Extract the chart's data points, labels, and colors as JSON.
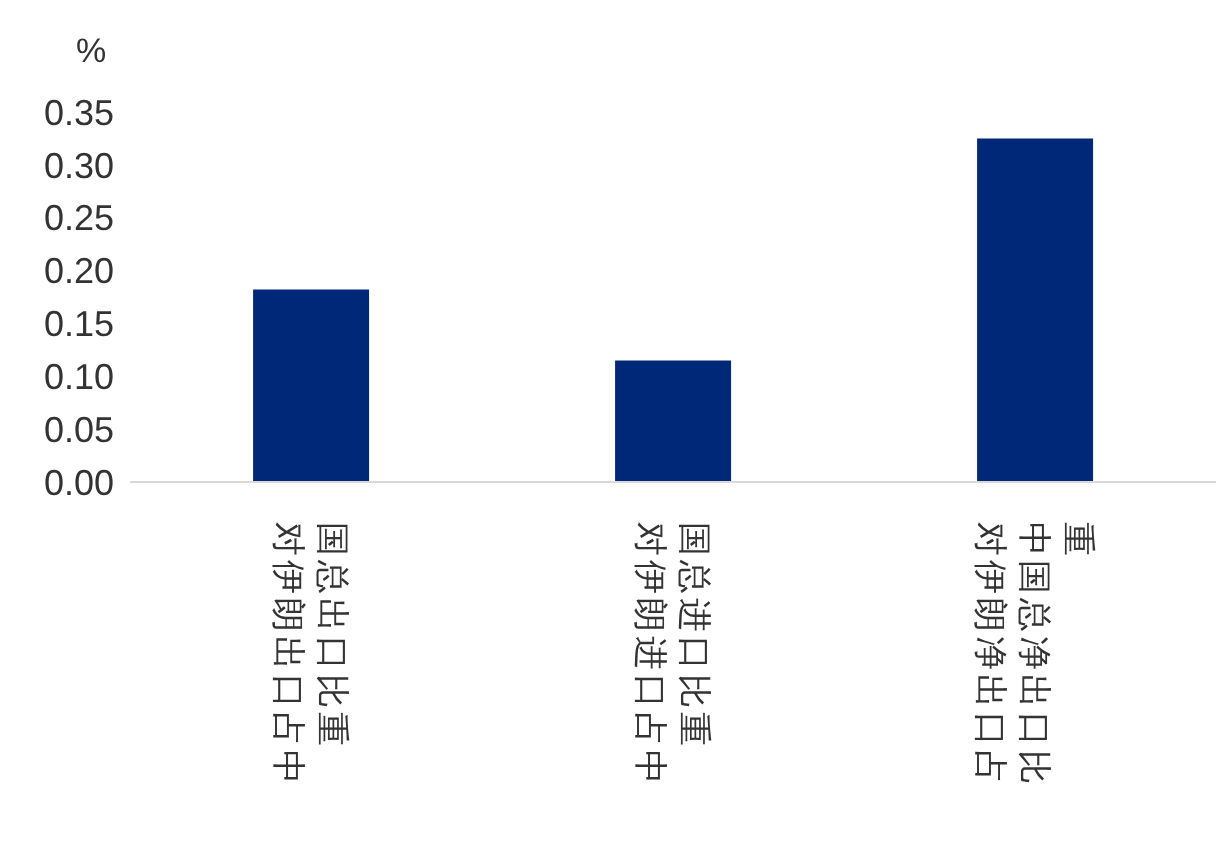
{
  "chart_data": {
    "type": "bar",
    "ylabel": "%",
    "categories": [
      "对伊朗出口占中国总出口比重",
      "对伊朗进口占中国总进口比重",
      "对伊朗净出口占中国总净出口比重"
    ],
    "values": [
      0.182,
      0.115,
      0.325
    ],
    "color": "#002878",
    "ylim": [
      0,
      0.35
    ],
    "yticks": [
      {
        "value": 0,
        "label": "0.00"
      },
      {
        "value": 0.05,
        "label": "0.05"
      },
      {
        "value": 0.1,
        "label": "0.10"
      },
      {
        "value": 0.15,
        "label": "0.15"
      },
      {
        "value": 0.2,
        "label": "0.20"
      },
      {
        "value": 0.25,
        "label": "0.25"
      },
      {
        "value": 0.3,
        "label": "0.30"
      },
      {
        "value": 0.35,
        "label": "0.35"
      }
    ],
    "grid": false,
    "legend": false
  }
}
